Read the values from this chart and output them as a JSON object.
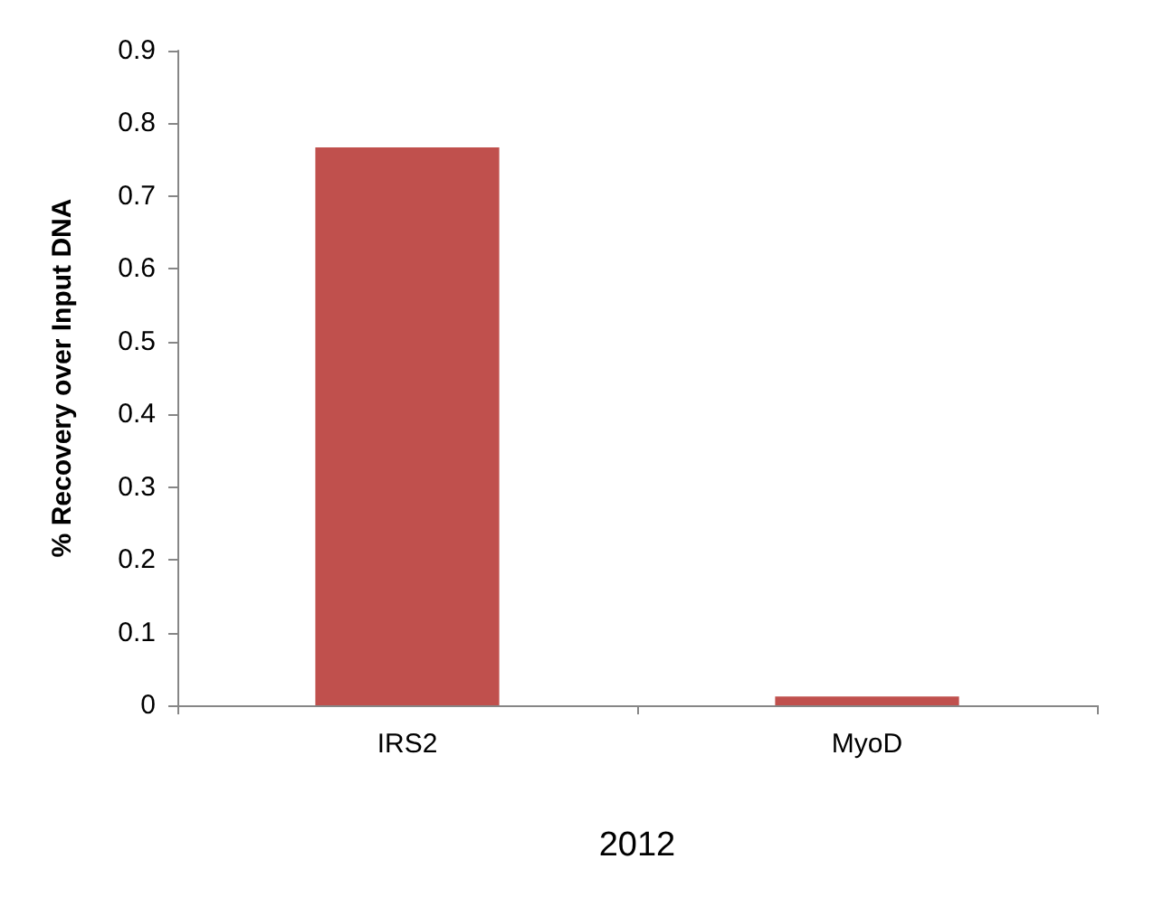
{
  "chart_data": {
    "type": "bar",
    "categories": [
      "IRS2",
      "MyoD"
    ],
    "values": [
      0.767,
      0.012
    ],
    "color": "#c0504d",
    "xlabel": "2012",
    "ylabel": "% Recovery over Input DNA",
    "ylim": [
      0,
      0.9
    ],
    "yticks": [
      0,
      0.1,
      0.2,
      0.3,
      0.4,
      0.5,
      0.6,
      0.7,
      0.8,
      0.9
    ],
    "grid": false
  }
}
